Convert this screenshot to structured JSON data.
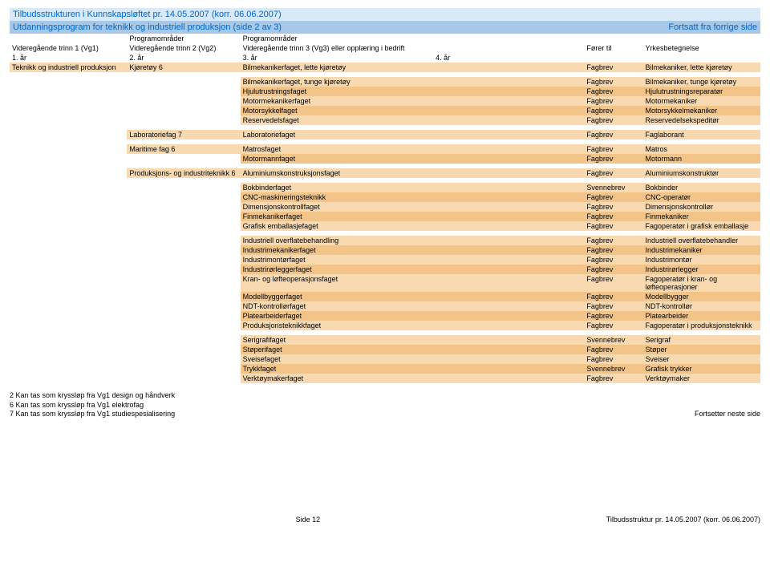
{
  "header": {
    "top": "Tilbudsstrukturen i Kunnskapsløftet pr. 14.05.2007 (korr. 06.06.2007)",
    "sub_left": "Utdanningsprogram for teknikk og industriell produksjon (side 2 av 3)",
    "sub_right": "Fortsatt fra forrige side"
  },
  "colhdr": {
    "c1": "",
    "c2": "Programområder",
    "c3": "Programområder",
    "c4": "",
    "c5": "",
    "c6": ""
  },
  "rowhdr": {
    "r1c1": "Videregående trinn 1 (Vg1)",
    "r1c2": "Videregående trinn 2 (Vg2)",
    "r1c3": "Videregående trinn 3 (Vg3) eller opplæring i bedrift",
    "r1c5": "Fører til",
    "r1c6": "Yrkesbetegnelse",
    "r2c1": "1. år",
    "r2c2": "2. år",
    "r2c3": "3. år",
    "r2c4": "4. år"
  },
  "groups": [
    {
      "vg1": "Teknikk og industriell produksjon",
      "vg2": "Kjøretøy 6",
      "rows": [
        [
          "Bilmekanikerfaget, lette kjøretøy",
          "",
          "Fagbrev",
          "Bilmekaniker, lette kjøretøy"
        ]
      ]
    },
    {
      "vg1": "",
      "vg2": "",
      "rows": [
        [
          "Bilmekanikerfaget, tunge kjøretøy",
          "",
          "Fagbrev",
          "Bilmekaniker, tunge kjøretøy"
        ],
        [
          "Hjulutrustningsfaget",
          "",
          "Fagbrev",
          "Hjulutrustningsreparatør"
        ],
        [
          "Motormekanikerfaget",
          "",
          "Fagbrev",
          "Motormekaniker"
        ],
        [
          "Motorsykkelfaget",
          "",
          "Fagbrev",
          "Motorsykkelmekaniker"
        ],
        [
          "Reservedelsfaget",
          "",
          "Fagbrev",
          "Reservedelsekspeditør"
        ]
      ]
    },
    {
      "vg1": "",
      "vg2": "Laboratoriefag 7",
      "rows": [
        [
          "Laboratoriefaget",
          "",
          "Fagbrev",
          "Faglaborant"
        ]
      ]
    },
    {
      "vg1": "",
      "vg2": "Maritime fag 6",
      "rows": [
        [
          "Matrosfaget",
          "",
          "Fagbrev",
          "Matros"
        ],
        [
          "Motormannfaget",
          "",
          "Fagbrev",
          "Motormann"
        ]
      ]
    },
    {
      "vg1": "",
      "vg2": "Produksjons- og industriteknikk 6",
      "rows": [
        [
          "Aluminiumskonstruksjonsfaget",
          "",
          "Fagbrev",
          "Aluminiumskonstruktør"
        ]
      ]
    },
    {
      "vg1": "",
      "vg2": "",
      "rows": [
        [
          "Bokbinderfaget",
          "",
          "Svennebrev",
          "Bokbinder"
        ],
        [
          "CNC-maskineringsteknikk",
          "",
          "Fagbrev",
          "CNC-operatør"
        ],
        [
          "Dimensjonskontrollfaget",
          "",
          "Fagbrev",
          "Dimensjonskontrollør"
        ],
        [
          "Finmekanikerfaget",
          "",
          "Fagbrev",
          "Finmekaniker"
        ],
        [
          "Grafisk emballasjefaget",
          "",
          "Fagbrev",
          "Fagoperatør i grafisk emballasje"
        ]
      ]
    },
    {
      "vg1": "",
      "vg2": "",
      "rows": [
        [
          "Industriell overflatebehandling",
          "",
          "Fagbrev",
          "Industriell overflatebehandler"
        ],
        [
          "Industrimekanikerfaget",
          "",
          "Fagbrev",
          "Industrimekaniker"
        ],
        [
          "Industrimontørfaget",
          "",
          "Fagbrev",
          "Industrimontør"
        ],
        [
          "Industrirørleggerfaget",
          "",
          "Fagbrev",
          "Industrirørlegger"
        ],
        [
          "Kran- og løfteoperasjonsfaget",
          "",
          "Fagbrev",
          "Fagoperatør i kran- og løfteoperasjoner"
        ],
        [
          "Modellbyggerfaget",
          "",
          "Fagbrev",
          "Modellbygger"
        ],
        [
          "NDT-kontrollørfaget",
          "",
          "Fagbrev",
          "NDT-kontrollør"
        ],
        [
          "Platearbeiderfaget",
          "",
          "Fagbrev",
          "Platearbeider"
        ],
        [
          "Produksjonsteknikkfaget",
          "",
          "Fagbrev",
          "Fagoperatør i produksjonsteknikk"
        ]
      ]
    },
    {
      "vg1": "",
      "vg2": "",
      "rows": [
        [
          "Serigrafifaget",
          "",
          "Svennebrev",
          "Serigraf"
        ],
        [
          "Støperifaget",
          "",
          "Fagbrev",
          "Støper"
        ],
        [
          "Sveisefaget",
          "",
          "Fagbrev",
          "Sveiser"
        ],
        [
          "Trykkfaget",
          "",
          "Svennebrev",
          "Grafisk trykker"
        ],
        [
          "Verktøymakerfaget",
          "",
          "Fagbrev",
          "Verktøymaker"
        ]
      ]
    }
  ],
  "footnotes": {
    "n2": "2 Kan tas som kryssløp fra Vg1 design og håndverk",
    "n6": "6 Kan tas som kryssløp fra Vg1 elektrofag",
    "n7": "7 Kan tas som kryssløp fra Vg1 studiespesialisering",
    "continue": "Fortsetter neste side"
  },
  "footer": {
    "page": "Side 12",
    "right": "Tilbudsstruktur pr. 14.05.2007 (korr. 06.06.2007)"
  },
  "colors": {
    "header_top_bg": "#d9e9f7",
    "header_sub_bg": "#a8c8e8",
    "header_text": "#0066cc",
    "band0": "#f8d9b0",
    "band1": "#f3c488"
  }
}
